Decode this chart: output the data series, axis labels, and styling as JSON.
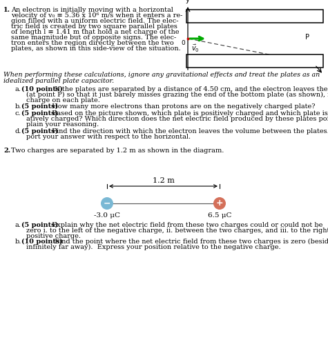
{
  "bg_color": "#ffffff",
  "diagram1": {
    "plate_color": "#000000",
    "plate_fill": "#ffffff",
    "arrow_green": "#00aa00",
    "dashed_color": "#444444",
    "red_dot": "#cc0000"
  },
  "diagram2": {
    "neg_color": "#7ab8d4",
    "pos_color": "#d4705a",
    "neg_label": "-3.0 μC",
    "pos_label": "6.5 μC",
    "dist_label": "1.2 m"
  }
}
